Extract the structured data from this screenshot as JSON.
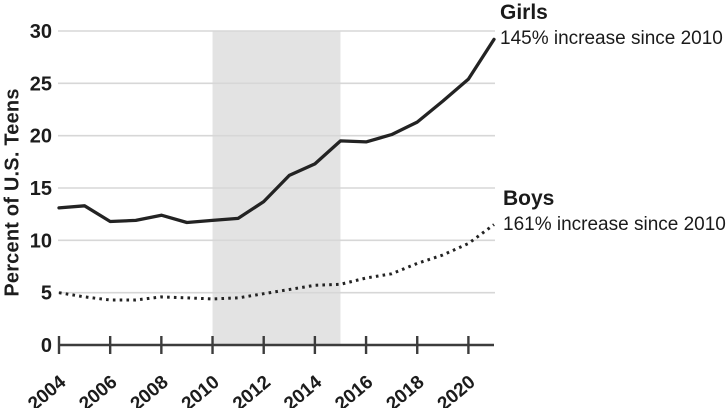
{
  "chart_data": {
    "type": "line",
    "title": "",
    "xlabel": "",
    "ylabel": "Percent of U.S. Teens",
    "x": [
      2004,
      2005,
      2006,
      2007,
      2008,
      2009,
      2010,
      2011,
      2012,
      2013,
      2014,
      2015,
      2016,
      2017,
      2018,
      2019,
      2020,
      2021
    ],
    "series": [
      {
        "name": "Girls",
        "style": "solid",
        "values": [
          13.1,
          13.3,
          11.8,
          11.9,
          12.4,
          11.7,
          11.9,
          12.1,
          13.7,
          16.2,
          17.3,
          19.5,
          19.4,
          20.1,
          21.3,
          23.3,
          25.4,
          29.2
        ]
      },
      {
        "name": "Boys",
        "style": "dotted",
        "values": [
          5.0,
          4.6,
          4.3,
          4.3,
          4.6,
          4.5,
          4.4,
          4.5,
          4.9,
          5.3,
          5.7,
          5.8,
          6.4,
          6.8,
          7.8,
          8.6,
          9.7,
          11.5
        ]
      }
    ],
    "annotations": [
      {
        "label": "Girls",
        "detail": "145% increase since 2010"
      },
      {
        "label": "Boys",
        "detail": "161% increase since 2010"
      }
    ],
    "yticks": [
      0,
      5,
      10,
      15,
      20,
      25,
      30
    ],
    "xticks": [
      2004,
      2006,
      2008,
      2010,
      2012,
      2014,
      2016,
      2018,
      2020
    ],
    "ylim": [
      0,
      30
    ],
    "xlim": [
      2004,
      2021
    ],
    "shaded_region": {
      "from": 2010,
      "to": 2015
    },
    "grid": "horizontal",
    "legend_position": "right-annotations",
    "colors": {
      "line": "#232323",
      "grid": "#d7d7d7",
      "band": "#e3e3e3",
      "axis": "#3c3c3c",
      "text": "#1c1c1c"
    }
  }
}
